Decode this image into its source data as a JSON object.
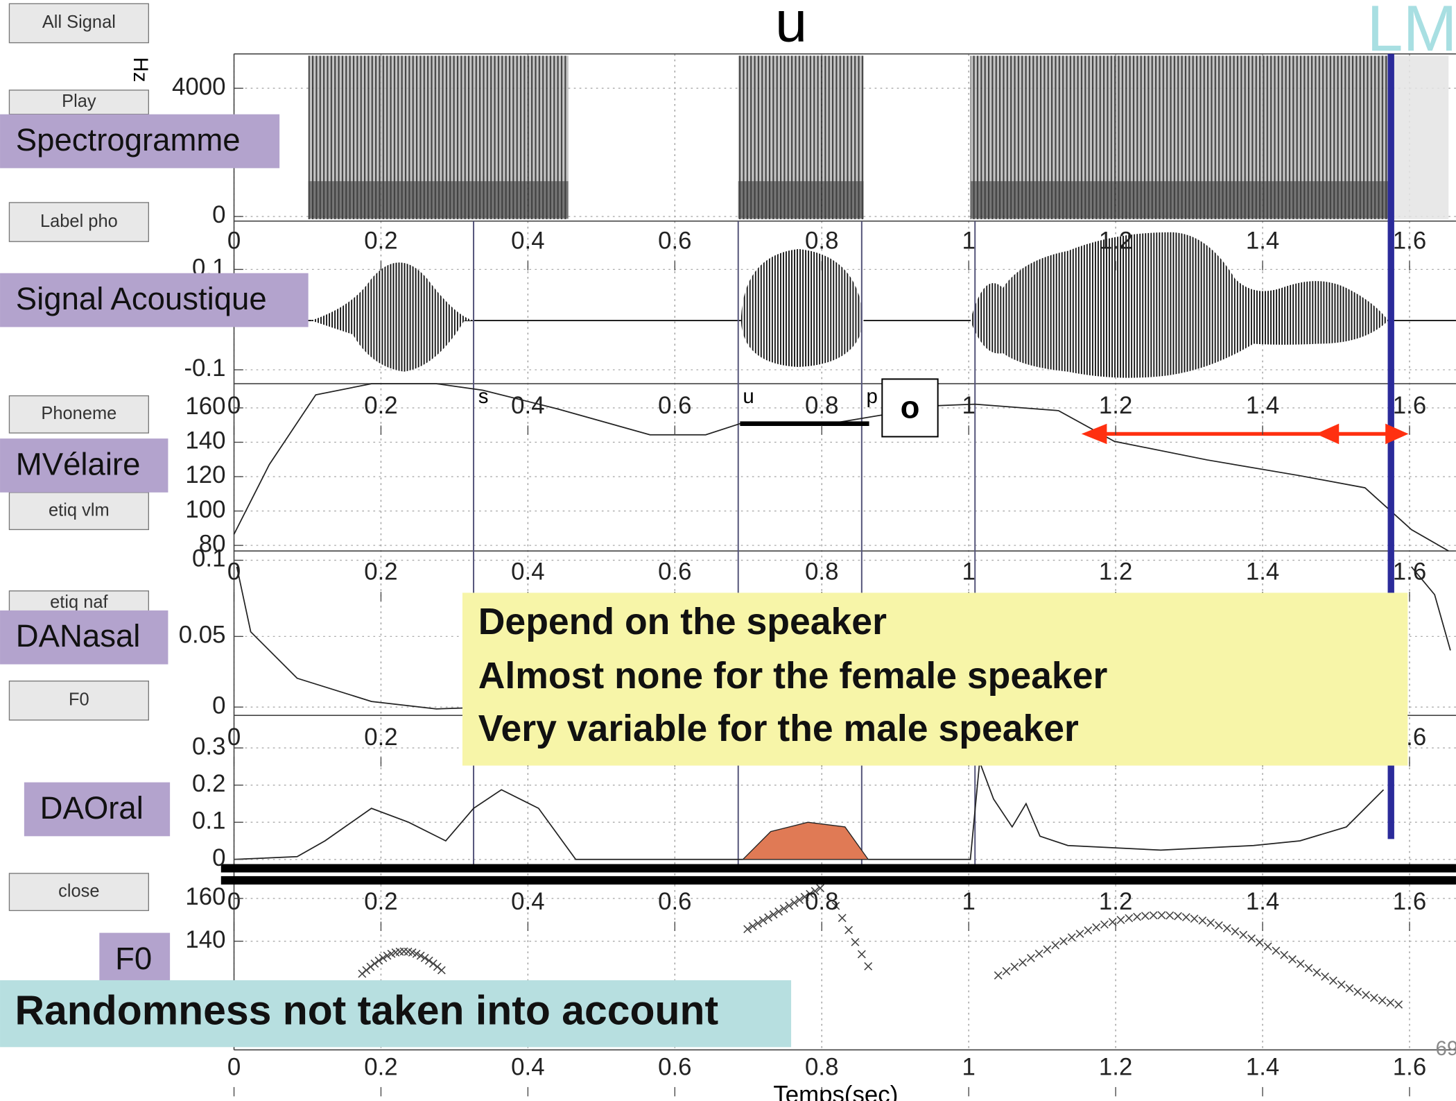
{
  "header": {
    "title": "u",
    "logo": "LM",
    "page_number": "69"
  },
  "buttons": [
    "All Signal",
    "Play",
    "Label pho",
    "Phoneme",
    "etiq vlm",
    "etiq naf",
    "F0",
    "close"
  ],
  "panel_labels": [
    "Spectrogramme",
    "Signal Acoustique",
    "MVélaire",
    "DANasal",
    "DAOral",
    "F0"
  ],
  "panels": [
    {
      "y_unit": "Hz",
      "yticks": [
        "4000",
        "0"
      ]
    },
    {
      "yticks": [
        "0.1",
        "-0.1"
      ]
    },
    {
      "yticks": [
        "160",
        "140",
        "120",
        "100",
        "80"
      ]
    },
    {
      "yticks": [
        "0.1",
        "0.05",
        "0"
      ]
    },
    {
      "yticks": [
        "0.3",
        "0.2",
        "0.1",
        "0"
      ]
    },
    {
      "yticks": [
        "160",
        "140"
      ]
    }
  ],
  "xticks": [
    "0",
    "0.2",
    "0.4",
    "0.6",
    "0.8",
    "1",
    "1.2",
    "1.4",
    "1.6"
  ],
  "x_label": "Temps(sec)",
  "phonemes": [
    "s",
    "u",
    "p"
  ],
  "boxed_phoneme": "o",
  "callout": [
    "Depend on the speaker",
    "Almost none for the female speaker",
    "Very variable for the male speaker"
  ],
  "bottom_note": "Randomness not taken into account"
}
